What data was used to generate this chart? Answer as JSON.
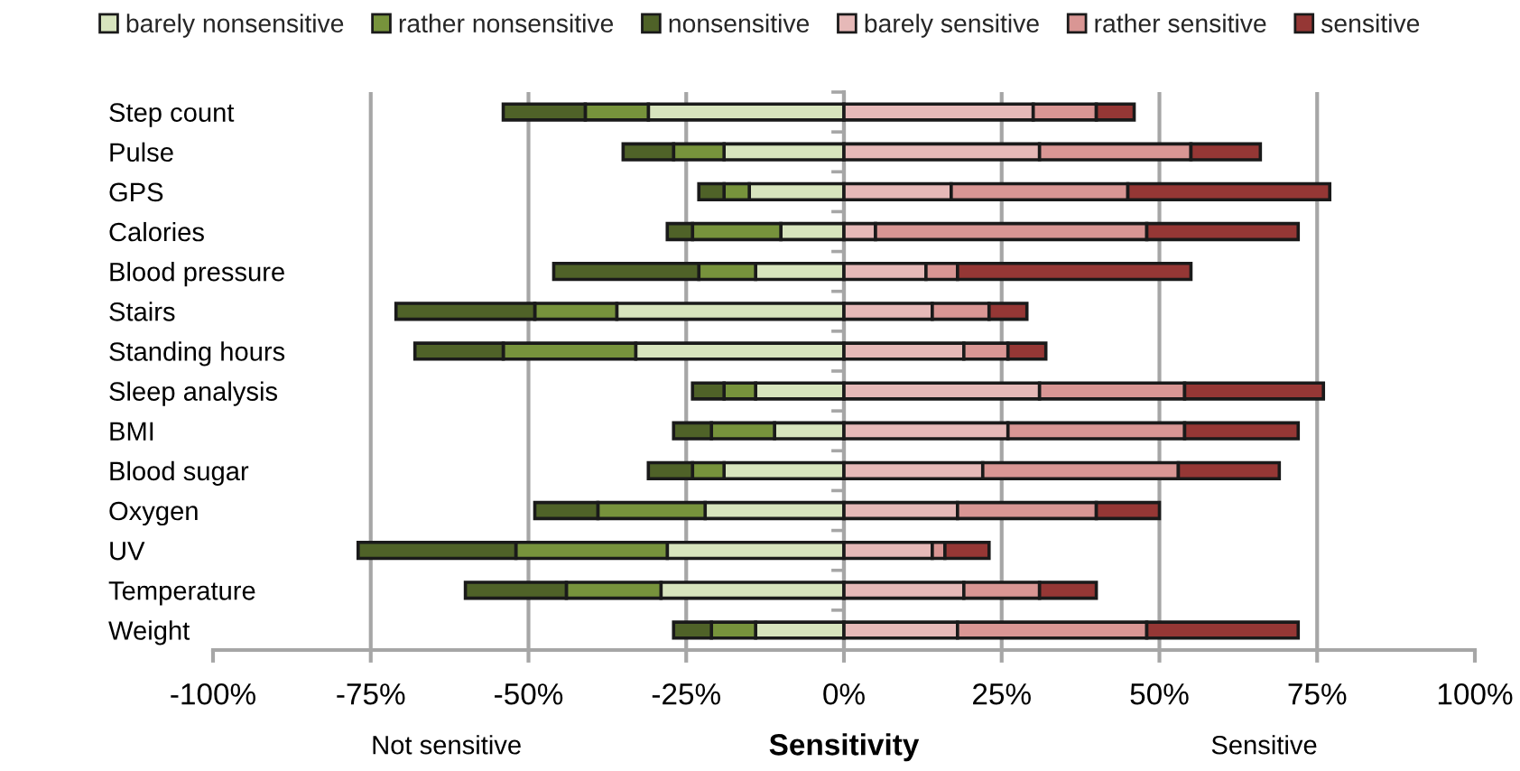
{
  "chart_data": {
    "type": "bar",
    "orientation": "horizontal",
    "stacked": true,
    "categories": [
      "Step count",
      "Pulse",
      "GPS",
      "Calories",
      "Blood pressure",
      "Stairs",
      "Standing hours",
      "Sleep analysis",
      "BMI",
      "Blood sugar",
      "Oxygen",
      "UV",
      "Temperature",
      "Weight"
    ],
    "series": [
      {
        "name": "barely nonsensitive",
        "color": "#d7e4bd",
        "values": [
          -31,
          -19,
          -15,
          -10,
          -14,
          -36,
          -33,
          -14,
          -11,
          -19,
          -22,
          -28,
          -29,
          -14
        ]
      },
      {
        "name": "rather nonsensitive",
        "color": "#77933c",
        "values": [
          -10,
          -8,
          -4,
          -14,
          -9,
          -13,
          -21,
          -5,
          -10,
          -5,
          -17,
          -24,
          -15,
          -7
        ]
      },
      {
        "name": "nonsensitive",
        "color": "#4f6228",
        "values": [
          -13,
          -8,
          -4,
          -4,
          -23,
          -22,
          -14,
          -5,
          -6,
          -7,
          -10,
          -25,
          -16,
          -6
        ]
      },
      {
        "name": "barely sensitive",
        "color": "#e6b9b8",
        "values": [
          30,
          31,
          17,
          5,
          13,
          14,
          19,
          31,
          26,
          22,
          18,
          14,
          19,
          18
        ]
      },
      {
        "name": "rather sensitive",
        "color": "#d99694",
        "values": [
          10,
          24,
          28,
          43,
          5,
          9,
          7,
          23,
          28,
          31,
          22,
          2,
          12,
          30
        ]
      },
      {
        "name": "sensitive",
        "color": "#953735",
        "values": [
          6,
          11,
          32,
          24,
          37,
          6,
          6,
          22,
          18,
          16,
          10,
          7,
          9,
          24
        ]
      }
    ],
    "xlim": [
      -100,
      100
    ],
    "xticks": [
      {
        "value": -100,
        "label": "-100%"
      },
      {
        "value": -75,
        "label": "-75%"
      },
      {
        "value": -50,
        "label": "-50%"
      },
      {
        "value": -25,
        "label": "-25%"
      },
      {
        "value": 0,
        "label": "0%"
      },
      {
        "value": 25,
        "label": "25%"
      },
      {
        "value": 50,
        "label": "50%"
      },
      {
        "value": 75,
        "label": "75%"
      },
      {
        "value": 100,
        "label": "100%"
      }
    ],
    "xlabel": "Sensitivity",
    "annotations": [
      "Not sensitive",
      "Sensitive"
    ],
    "grid": "x",
    "legend": "top"
  }
}
